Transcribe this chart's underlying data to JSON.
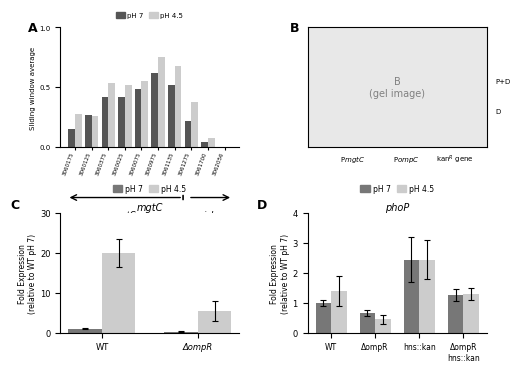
{
  "panel_A": {
    "categories": [
      "3060175",
      "3060125",
      "3060375",
      "3060025",
      "3060075",
      "3060975",
      "3061135",
      "3061275",
      "3061700",
      "3062056"
    ],
    "pH7": [
      0.15,
      0.27,
      0.42,
      0.42,
      0.49,
      0.62,
      0.52,
      0.22,
      0.04,
      0.0
    ],
    "pH45": [
      0.28,
      0.26,
      0.54,
      0.52,
      0.55,
      0.75,
      0.68,
      0.38,
      0.08,
      0.0
    ],
    "ylabel": "Sliding window average",
    "ylim": [
      0.0,
      1.0
    ],
    "color_pH7": "#555555",
    "color_pH45": "#cccccc",
    "gene_mgtC": "mgtC",
    "gene_yicL": "yicL"
  },
  "panel_C": {
    "groups": [
      "WT",
      "ΔompR"
    ],
    "pH7": [
      1.0,
      0.3
    ],
    "pH45": [
      20.0,
      5.5
    ],
    "err_pH7": [
      0.1,
      0.1
    ],
    "err_pH45": [
      3.5,
      2.5
    ],
    "ylabel": "Fold Expression\n(relative to WT pH 7)",
    "ylim": [
      0,
      30
    ],
    "yticks": [
      0,
      10,
      20,
      30
    ],
    "title": "mgtC",
    "color_pH7": "#777777",
    "color_pH45": "#cccccc"
  },
  "panel_D": {
    "groups": [
      "WT",
      "ΔompR",
      "hns::kan",
      "ΔompR\nhns::kan"
    ],
    "pH7": [
      1.0,
      0.65,
      2.45,
      1.25
    ],
    "pH45": [
      1.4,
      0.45,
      2.45,
      1.3
    ],
    "err_pH7": [
      0.1,
      0.1,
      0.75,
      0.2
    ],
    "err_pH45": [
      0.5,
      0.15,
      0.65,
      0.2
    ],
    "ylabel": "Fold Expression\n(relative to WT pH 7)",
    "ylim": [
      0,
      4
    ],
    "yticks": [
      0,
      1,
      2,
      3,
      4
    ],
    "title": "phoP",
    "color_pH7": "#777777",
    "color_pH45": "#cccccc"
  },
  "legend_pH7_label": "pH 7",
  "legend_pH45_label": "pH 4.5",
  "panel_labels": [
    "A",
    "B",
    "C",
    "D"
  ],
  "bg_color": "#f5f5f5"
}
